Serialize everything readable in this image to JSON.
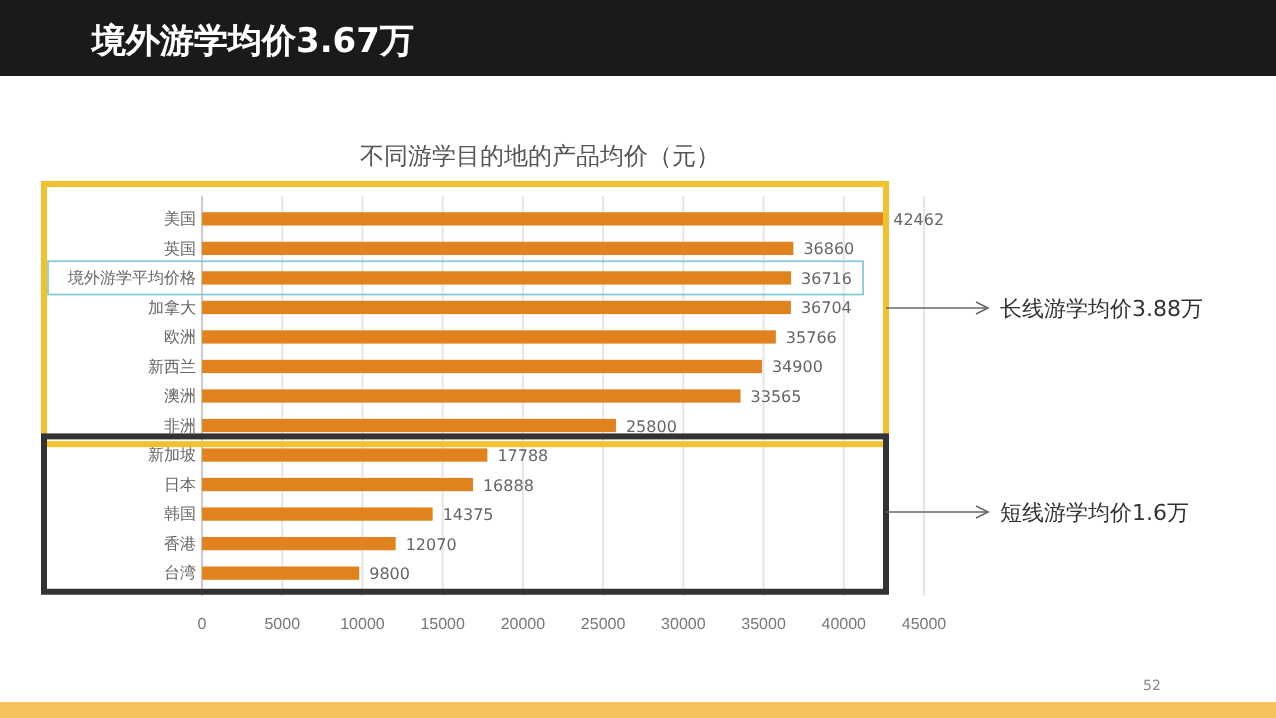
{
  "chart_data": {
    "type": "bar",
    "orientation": "horizontal",
    "title": "境外游学均价3.67万",
    "subtitle": "不同游学目的地的产品均价（元）",
    "categories": [
      "美国",
      "英国",
      "境外游学平均价格",
      "加拿大",
      "欧洲",
      "新西兰",
      "澳洲",
      "非洲",
      "新加坡",
      "日本",
      "韩国",
      "香港",
      "台湾"
    ],
    "values": [
      42462,
      36860,
      36716,
      36704,
      35766,
      34900,
      33565,
      25800,
      17788,
      16888,
      14375,
      12070,
      9800
    ],
    "color": "#e0821e",
    "data_labels": true,
    "grid": "x",
    "xlim": [
      0,
      45000
    ],
    "xticks": [
      0,
      5000,
      10000,
      15000,
      20000,
      25000,
      30000,
      35000,
      40000,
      45000
    ],
    "annotations": [
      "长线游学均价3.88万",
      "短线游学均价1.6万",
      "52"
    ]
  }
}
